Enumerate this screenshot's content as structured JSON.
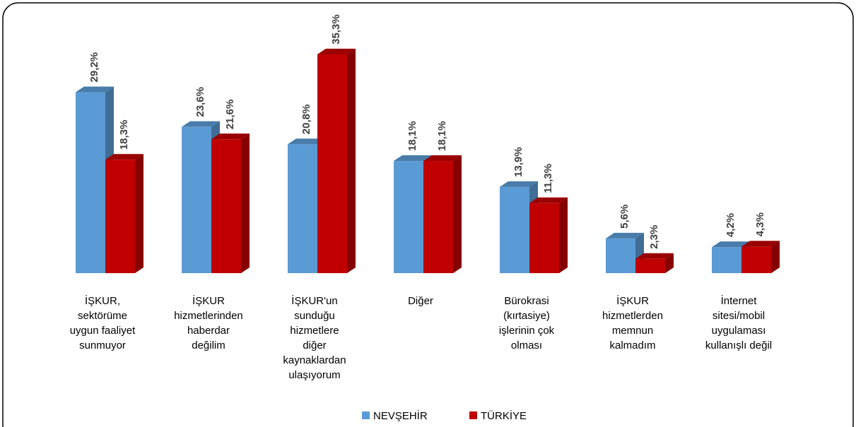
{
  "chart_data": {
    "type": "bar3d",
    "categories": [
      [
        "İŞKUR,",
        "sektörüme",
        "uygun faaliyet",
        "sunmuyor"
      ],
      [
        "İŞKUR",
        "hizmetlerinden",
        "haberdar",
        "değilim"
      ],
      [
        "İŞKUR'un",
        "sunduğu",
        "hizmetlere",
        "diğer",
        "kaynaklardan",
        "ulaşıyorum"
      ],
      [
        "Diğer"
      ],
      [
        "Bürokrasi",
        "(kırtasiye)",
        "işlerinin çok",
        "olması"
      ],
      [
        "İŞKUR",
        "hizmetlerden",
        "memnun",
        "kalmadım"
      ],
      [
        "İnternet",
        "sitesi/mobil",
        "uygulaması",
        "kullanışlı değil"
      ]
    ],
    "series": [
      {
        "name": "NEVŞEHİR",
        "color": "#5b9bd5",
        "values": [
          29.2,
          23.6,
          20.8,
          18.1,
          13.9,
          5.6,
          4.2
        ],
        "value_labels": [
          "29,2%",
          "23,6%",
          "20,8%",
          "18,1%",
          "13,9%",
          "5,6%",
          "4,2%"
        ]
      },
      {
        "name": "TÜRKİYE",
        "color": "#c00000",
        "values": [
          18.3,
          21.6,
          35.3,
          18.1,
          11.3,
          2.3,
          4.3
        ],
        "value_labels": [
          "18,3%",
          "21,6%",
          "35,3%",
          "18,1%",
          "11,3%",
          "2,3%",
          "4,3%"
        ]
      }
    ],
    "legend": "bottom"
  }
}
